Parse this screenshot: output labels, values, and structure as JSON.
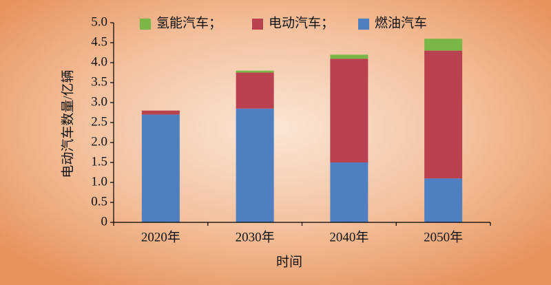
{
  "chart_data": {
    "type": "stacked_bar",
    "categories": [
      "2020年",
      "2030年",
      "2040年",
      "2050年"
    ],
    "series": [
      {
        "name": "燃油汽车",
        "color": "#4f7fc0",
        "values": [
          2.7,
          2.85,
          1.5,
          1.1
        ]
      },
      {
        "name": "电动汽车；",
        "color": "#b94150",
        "values": [
          0.1,
          0.9,
          2.6,
          3.2
        ]
      },
      {
        "name": "氢能汽车；",
        "color": "#7ab648",
        "values": [
          0,
          0.05,
          0.1,
          0.3
        ]
      }
    ],
    "x_label": "时间",
    "y_label": "电动汽车数量/亿辆",
    "ylim": [
      0,
      5
    ],
    "yticks": [
      0,
      0.5,
      {
        "value": 1,
        "label": "1.0"
      },
      1.5,
      {
        "value": 2,
        "label": "2.0"
      },
      2.5,
      {
        "value": 3,
        "label": "3.0"
      },
      3.5,
      {
        "value": 4,
        "label": "4.0"
      },
      4.5,
      {
        "value": 5,
        "label": "5.0"
      }
    ],
    "legend": "top"
  }
}
